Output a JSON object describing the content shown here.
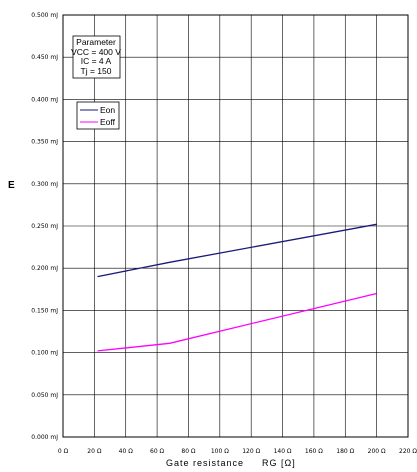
{
  "chart_data": {
    "type": "line",
    "title": "",
    "xlabel": "Gate resistance",
    "xlabel_symbol": "RG [Ω]",
    "ylabel": "E",
    "xlim": [
      0,
      220
    ],
    "ylim": [
      0,
      0.5
    ],
    "grid": true,
    "x_ticks": [
      "0 Ω",
      "20 Ω",
      "40 Ω",
      "60 Ω",
      "80 Ω",
      "100 Ω",
      "120 Ω",
      "140 Ω",
      "160 Ω",
      "180 Ω",
      "200 Ω",
      "220 Ω"
    ],
    "y_ticks": [
      "0.000 mJ",
      "0.050 mJ",
      "0.100 mJ",
      "0.150 mJ",
      "0.200 mJ",
      "0.250 mJ",
      "0.300 mJ",
      "0.350 mJ",
      "0.400 mJ",
      "0.450 mJ",
      "0.500 mJ"
    ],
    "series": [
      {
        "name": "Eon",
        "color": "#1a1a7a",
        "x": [
          22,
          68,
          200
        ],
        "y": [
          0.19,
          0.207,
          0.252
        ]
      },
      {
        "name": "Eoff",
        "color": "#ff00ff",
        "x": [
          22,
          68,
          200
        ],
        "y": [
          0.102,
          0.111,
          0.17
        ]
      }
    ],
    "legend_position": "top-left",
    "parameter_box": {
      "title": "Parameter",
      "lines": [
        "VCC = 400 V",
        "IC = 4 A",
        "Tj = 150"
      ]
    }
  }
}
